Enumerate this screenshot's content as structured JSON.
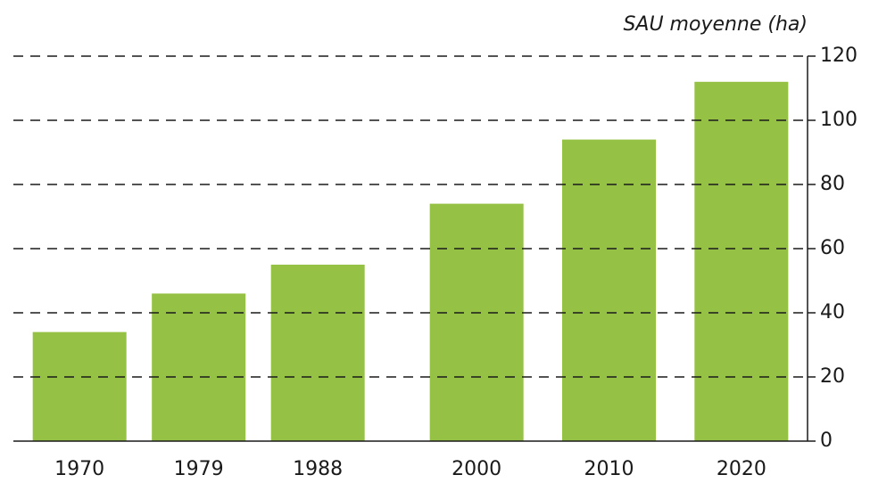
{
  "chart_data": {
    "type": "bar",
    "y_label": "SAU moyenne (ha)",
    "x": [
      1970,
      1979,
      1988,
      2000,
      2010,
      2020
    ],
    "values": [
      34,
      46,
      55,
      74,
      94,
      112
    ],
    "color": "#95c245",
    "xlim": [
      1965,
      2025
    ],
    "ylim": [
      0,
      120
    ],
    "yticks": [
      0,
      20,
      40,
      60,
      80,
      100,
      120
    ],
    "grid": true
  }
}
